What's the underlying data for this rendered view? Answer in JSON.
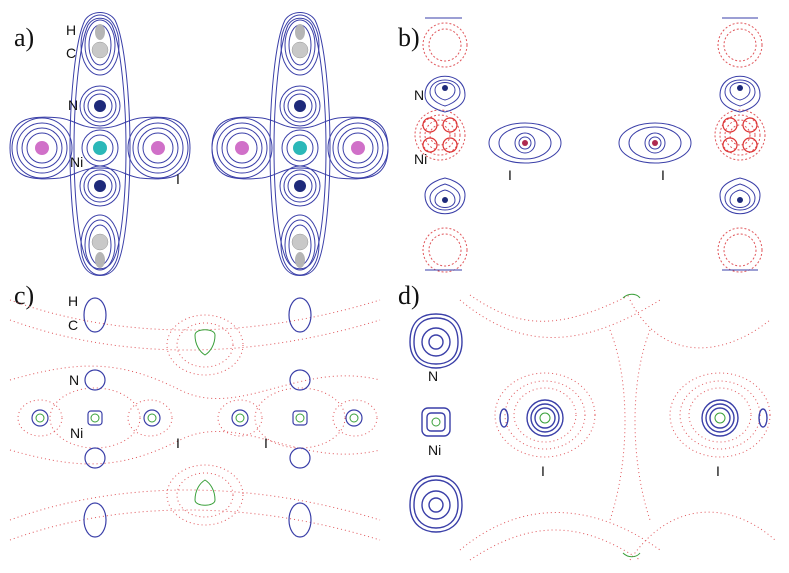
{
  "panels": [
    {
      "id": "a",
      "label": "a)",
      "atom_labels": [
        "H",
        "C",
        "N",
        "Ni",
        "I"
      ]
    },
    {
      "id": "b",
      "label": "b)",
      "atom_labels": [
        "N",
        "Ni",
        "I",
        "I"
      ]
    },
    {
      "id": "c",
      "label": "c)",
      "atom_labels": [
        "H",
        "C",
        "N",
        "Ni",
        "I",
        "I"
      ]
    },
    {
      "id": "d",
      "label": "d)",
      "atom_labels": [
        "N",
        "Ni",
        "I",
        "I"
      ]
    }
  ],
  "colors": {
    "positive_contour": "#3a3fa8",
    "negative_contour": "#e0555a",
    "zero_contour": "#3aa03a",
    "atom_H": "#b5b5b5",
    "atom_C": "#c8c8c8",
    "atom_N": "#1e2a7a",
    "atom_Ni": "#2bb8b8",
    "atom_I": "#d070c8"
  }
}
